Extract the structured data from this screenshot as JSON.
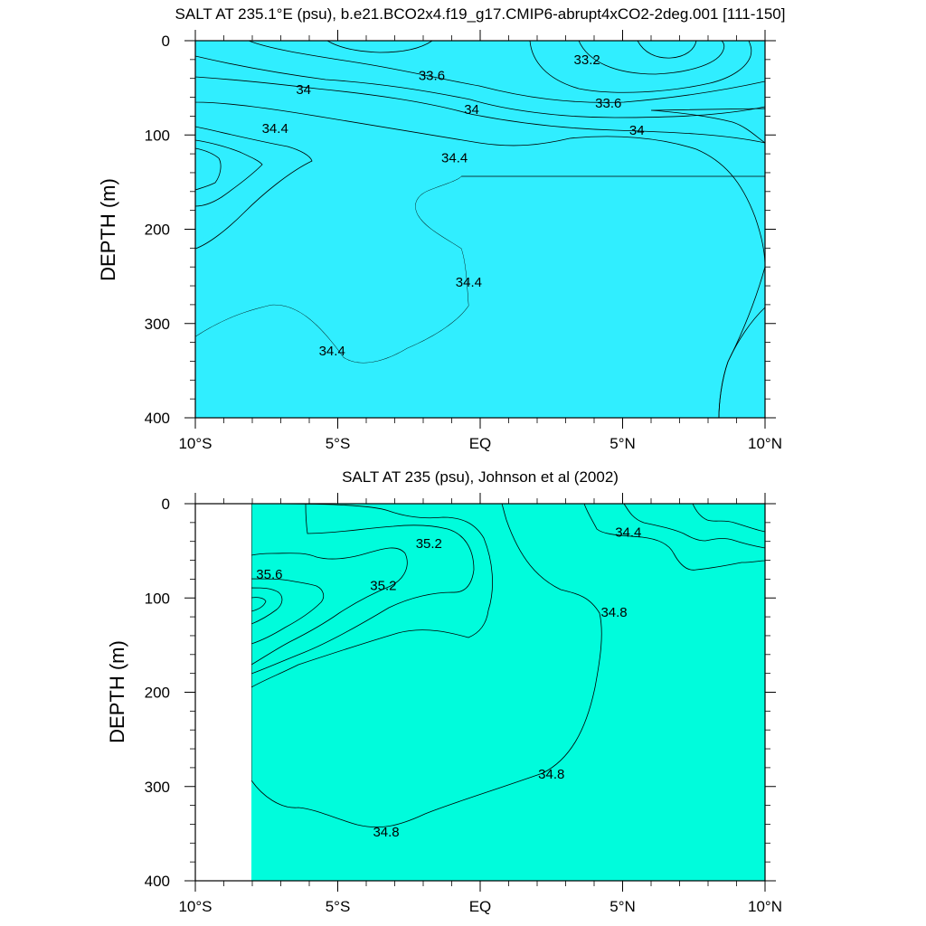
{
  "chart_data": [
    {
      "type": "contour",
      "title": "SALT AT 235.1°E (psu), b.e21.BCO2x4.f19_g17.CMIP6-abrupt4xCO2-2deg.001 [111-150]",
      "xlabel": "",
      "ylabel": "DEPTH (m)",
      "xlim": [
        -10,
        10
      ],
      "ylim": [
        400,
        0
      ],
      "x_ticks": [
        -10,
        -5,
        0,
        5,
        10
      ],
      "x_tick_labels": [
        "10°S",
        "5°S",
        "EQ",
        "5°N",
        "10°N"
      ],
      "y_ticks": [
        0,
        100,
        200,
        300,
        400
      ],
      "y_tick_labels": [
        "0",
        "100",
        "200",
        "300",
        "400"
      ],
      "data_xmin": -10,
      "contour_interval": 0.2,
      "colors": {
        "32.8": "#8a00d4",
        "33.0": "#5a06e6",
        "33.2": "#0000e6",
        "33.4": "#0030f0",
        "33.6": "#0a78f5",
        "33.8": "#14a5f7",
        "34.0": "#10c8fc",
        "34.2": "#30eeff",
        "34.4": "#00f8ff",
        "34.6": "#10fa9e",
        "34.8": "#28ed62"
      },
      "contour_labels": [
        {
          "text": "33.2",
          "x": 3.75,
          "y": 20
        },
        {
          "text": "33.6",
          "x": -1.7,
          "y": 37
        },
        {
          "text": "33.6",
          "x": 4.5,
          "y": 66
        },
        {
          "text": "34",
          "x": -6.2,
          "y": 52
        },
        {
          "text": "34",
          "x": -0.3,
          "y": 73
        },
        {
          "text": "34",
          "x": 5.5,
          "y": 95
        },
        {
          "text": "34.4",
          "x": -7.2,
          "y": 93
        },
        {
          "text": "34.4",
          "x": -0.9,
          "y": 124
        },
        {
          "text": "34.4",
          "x": -0.4,
          "y": 256
        },
        {
          "text": "34.4",
          "x": -5.2,
          "y": 329
        }
      ]
    },
    {
      "type": "contour",
      "title": "SALT AT 235 (psu), Johnson et al (2002)",
      "xlabel": "",
      "ylabel": "DEPTH (m)",
      "xlim": [
        -10,
        10
      ],
      "ylim": [
        400,
        0
      ],
      "x_ticks": [
        -10,
        -5,
        0,
        5,
        10
      ],
      "x_tick_labels": [
        "10°S",
        "5°S",
        "EQ",
        "5°N",
        "10°N"
      ],
      "y_ticks": [
        0,
        100,
        200,
        300,
        400
      ],
      "y_tick_labels": [
        "0",
        "100",
        "200",
        "300",
        "400"
      ],
      "data_xmin": -8,
      "contour_interval": 0.2,
      "colors": {
        "34.0": "#10c8fc",
        "34.2": "#30eeff",
        "34.4": "#00f8ff",
        "34.6": "#00fcdc",
        "34.8": "#00f8b4",
        "35.0": "#28ed62",
        "35.2": "#00e400",
        "35.4": "#96f032",
        "35.6": "#fcf028",
        "35.8": "#fdd228",
        "36.0": "#e4a05a"
      },
      "contour_labels": [
        {
          "text": "35.6",
          "x": -7.4,
          "y": 75
        },
        {
          "text": "35.2",
          "x": -1.8,
          "y": 42
        },
        {
          "text": "35.2",
          "x": -3.4,
          "y": 87
        },
        {
          "text": "34.4",
          "x": 5.2,
          "y": 30
        },
        {
          "text": "34.8",
          "x": 4.7,
          "y": 115
        },
        {
          "text": "34.8",
          "x": 2.5,
          "y": 287
        },
        {
          "text": "34.8",
          "x": -3.3,
          "y": 348
        }
      ]
    }
  ]
}
